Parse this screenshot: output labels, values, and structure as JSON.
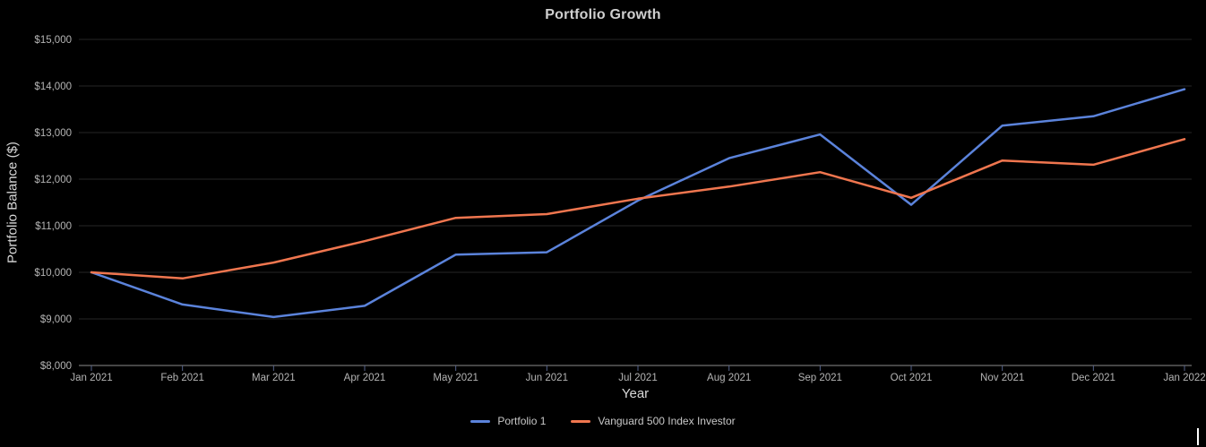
{
  "chart_data": {
    "type": "line",
    "title": "Portfolio Growth",
    "xlabel": "Year",
    "ylabel": "Portfolio Balance ($)",
    "categories": [
      "Jan 2021",
      "Feb 2021",
      "Mar 2021",
      "Apr 2021",
      "May 2021",
      "Jun 2021",
      "Jul 2021",
      "Aug 2021",
      "Sep 2021",
      "Oct 2021",
      "Nov 2021",
      "Dec 2021",
      "Jan 2022"
    ],
    "series": [
      {
        "name": "Portfolio 1",
        "color": "#5b83db",
        "values": [
          10000,
          9310,
          9040,
          9280,
          10380,
          10430,
          11540,
          12450,
          12960,
          11450,
          13150,
          13350,
          13930
        ]
      },
      {
        "name": "Vanguard 500 Index Investor",
        "color": "#f0764f",
        "values": [
          10000,
          9870,
          10210,
          10670,
          11170,
          11250,
          11580,
          11840,
          12150,
          11600,
          12400,
          12310,
          12860
        ]
      }
    ],
    "ylim": [
      8000,
      15000
    ],
    "ytick_interval": 1000,
    "ytick_labels": [
      "$8,000",
      "$9,000",
      "$10,000",
      "$11,000",
      "$12,000",
      "$13,000",
      "$14,000",
      "$15,000"
    ],
    "grid": true,
    "legend_position": "bottom"
  }
}
